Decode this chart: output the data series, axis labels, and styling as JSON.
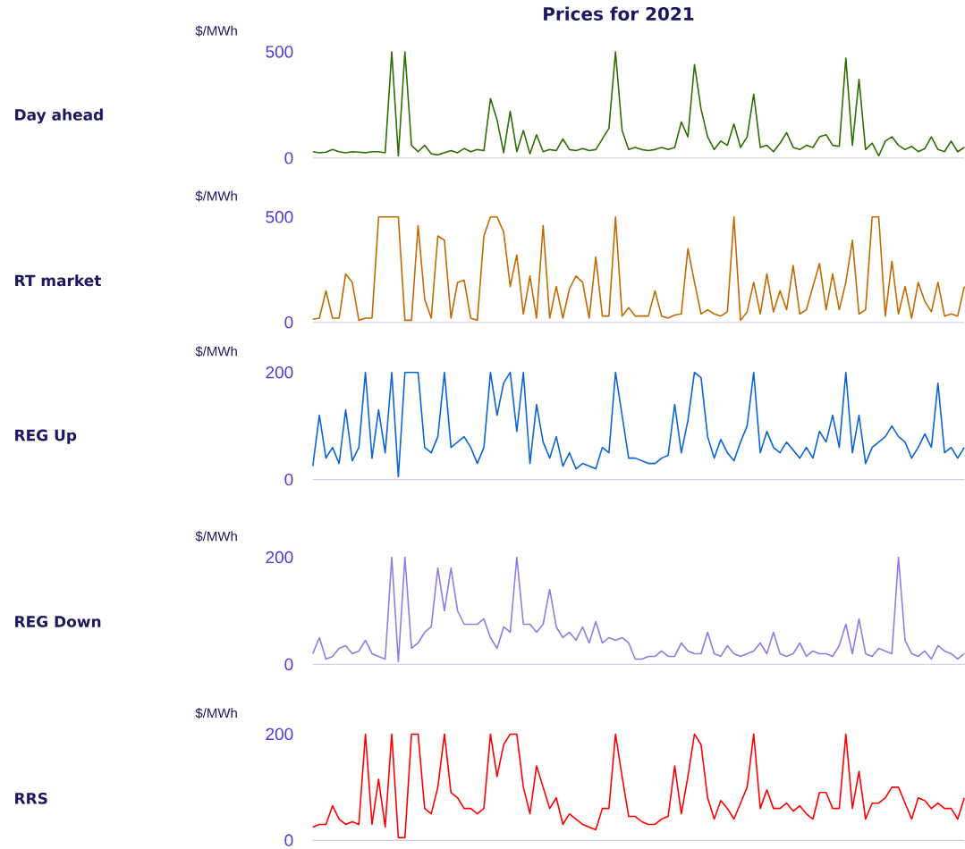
{
  "chart_data": [
    {
      "type": "line",
      "title": "Prices for 2021",
      "ylabel": "Day ahead",
      "annotations": [
        "$/MWh"
      ],
      "categories": [
        null,
        null,
        null,
        null,
        null,
        null,
        null,
        null,
        null,
        null,
        null,
        null,
        null,
        null,
        null,
        null,
        null,
        null,
        null,
        null,
        null,
        null,
        null,
        null,
        null,
        null,
        null,
        null,
        null,
        null,
        null,
        null,
        null,
        null,
        null,
        null,
        null,
        null,
        null,
        null,
        null,
        null,
        null,
        null,
        null,
        null,
        null,
        null,
        null,
        null,
        null,
        null,
        null,
        null,
        null,
        null,
        null,
        null,
        null,
        null,
        null,
        null,
        null,
        null,
        null,
        null,
        null,
        null,
        null,
        null,
        null,
        null,
        null,
        null,
        null,
        null,
        null,
        null,
        null,
        null,
        null,
        null,
        null,
        null,
        null,
        null,
        null,
        null,
        null,
        null,
        null,
        null,
        null,
        null,
        null,
        null,
        null,
        null,
        null,
        null
      ],
      "ylim": [
        0,
        500
      ],
      "yticks": [
        0,
        500
      ],
      "series": [
        {
          "color": "#2d6e00",
          "values": [
            30,
            25,
            28,
            40,
            30,
            25,
            30,
            28,
            25,
            30,
            30,
            25,
            500,
            10,
            500,
            60,
            30,
            60,
            20,
            15,
            25,
            35,
            25,
            45,
            30,
            40,
            35,
            280,
            180,
            25,
            220,
            30,
            130,
            20,
            110,
            30,
            40,
            35,
            90,
            40,
            35,
            45,
            35,
            40,
            90,
            140,
            500,
            130,
            40,
            50,
            40,
            35,
            40,
            50,
            40,
            50,
            170,
            100,
            440,
            230,
            100,
            40,
            80,
            60,
            160,
            50,
            100,
            300,
            50,
            60,
            30,
            70,
            120,
            50,
            40,
            60,
            50,
            100,
            110,
            60,
            55,
            470,
            60,
            370,
            40,
            70,
            10,
            80,
            100,
            60,
            40,
            55,
            30,
            45,
            100,
            40,
            30,
            80,
            30,
            50
          ]
        }
      ]
    },
    {
      "type": "line",
      "ylabel": "RT market",
      "annotations": [
        "$/MWh"
      ],
      "categories": [
        null,
        null,
        null,
        null,
        null,
        null,
        null,
        null,
        null,
        null,
        null,
        null,
        null,
        null,
        null,
        null,
        null,
        null,
        null,
        null,
        null,
        null,
        null,
        null,
        null,
        null,
        null,
        null,
        null,
        null,
        null,
        null,
        null,
        null,
        null,
        null,
        null,
        null,
        null,
        null,
        null,
        null,
        null,
        null,
        null,
        null,
        null,
        null,
        null,
        null,
        null,
        null,
        null,
        null,
        null,
        null,
        null,
        null,
        null,
        null,
        null,
        null,
        null,
        null,
        null,
        null,
        null,
        null,
        null,
        null,
        null,
        null,
        null,
        null,
        null,
        null,
        null,
        null,
        null,
        null,
        null,
        null,
        null,
        null,
        null,
        null,
        null,
        null,
        null,
        null,
        null,
        null,
        null,
        null,
        null,
        null,
        null,
        null,
        null,
        null
      ],
      "ylim": [
        0,
        500
      ],
      "yticks": [
        0,
        500
      ],
      "series": [
        {
          "color": "#c26a00",
          "values": [
            15,
            20,
            150,
            20,
            20,
            230,
            190,
            10,
            20,
            20,
            500,
            500,
            500,
            500,
            10,
            10,
            460,
            110,
            20,
            410,
            390,
            20,
            190,
            200,
            20,
            10,
            410,
            500,
            500,
            430,
            170,
            320,
            40,
            220,
            20,
            460,
            20,
            170,
            20,
            160,
            220,
            190,
            20,
            310,
            30,
            30,
            500,
            30,
            70,
            30,
            30,
            30,
            150,
            30,
            20,
            35,
            40,
            350,
            190,
            40,
            60,
            40,
            30,
            50,
            500,
            10,
            50,
            190,
            40,
            230,
            50,
            150,
            60,
            270,
            40,
            60,
            170,
            280,
            60,
            230,
            60,
            190,
            390,
            40,
            60,
            500,
            500,
            30,
            290,
            40,
            170,
            20,
            190,
            100,
            50,
            190,
            30,
            40,
            30,
            170
          ]
        }
      ]
    },
    {
      "type": "line",
      "ylabel": "REG Up",
      "annotations": [
        "$/MWh"
      ],
      "categories": [
        null,
        null,
        null,
        null,
        null,
        null,
        null,
        null,
        null,
        null,
        null,
        null,
        null,
        null,
        null,
        null,
        null,
        null,
        null,
        null,
        null,
        null,
        null,
        null,
        null,
        null,
        null,
        null,
        null,
        null,
        null,
        null,
        null,
        null,
        null,
        null,
        null,
        null,
        null,
        null,
        null,
        null,
        null,
        null,
        null,
        null,
        null,
        null,
        null,
        null,
        null,
        null,
        null,
        null,
        null,
        null,
        null,
        null,
        null,
        null,
        null,
        null,
        null,
        null,
        null,
        null,
        null,
        null,
        null,
        null,
        null,
        null,
        null,
        null,
        null,
        null,
        null,
        null,
        null,
        null,
        null,
        null,
        null,
        null,
        null,
        null,
        null,
        null,
        null,
        null,
        null,
        null,
        null,
        null,
        null,
        null,
        null,
        null,
        null,
        null
      ],
      "ylim": [
        0,
        200
      ],
      "yticks": [
        0,
        200
      ],
      "series": [
        {
          "color": "#0a64d8",
          "values": [
            25,
            120,
            40,
            60,
            30,
            130,
            35,
            60,
            200,
            40,
            130,
            50,
            200,
            5,
            200,
            200,
            200,
            60,
            50,
            80,
            200,
            60,
            70,
            80,
            60,
            30,
            60,
            200,
            120,
            180,
            200,
            90,
            200,
            30,
            140,
            70,
            40,
            80,
            25,
            50,
            20,
            30,
            25,
            20,
            60,
            50,
            200,
            120,
            40,
            40,
            35,
            30,
            30,
            40,
            45,
            140,
            50,
            110,
            200,
            190,
            80,
            40,
            75,
            50,
            35,
            70,
            100,
            200,
            50,
            90,
            60,
            50,
            70,
            55,
            40,
            60,
            40,
            90,
            70,
            120,
            60,
            200,
            50,
            120,
            30,
            60,
            70,
            80,
            100,
            80,
            70,
            40,
            60,
            85,
            60,
            180,
            50,
            60,
            40,
            60
          ]
        }
      ]
    },
    {
      "type": "line",
      "ylabel": "REG Down",
      "annotations": [
        "$/MWh"
      ],
      "categories": [
        null,
        null,
        null,
        null,
        null,
        null,
        null,
        null,
        null,
        null,
        null,
        null,
        null,
        null,
        null,
        null,
        null,
        null,
        null,
        null,
        null,
        null,
        null,
        null,
        null,
        null,
        null,
        null,
        null,
        null,
        null,
        null,
        null,
        null,
        null,
        null,
        null,
        null,
        null,
        null,
        null,
        null,
        null,
        null,
        null,
        null,
        null,
        null,
        null,
        null,
        null,
        null,
        null,
        null,
        null,
        null,
        null,
        null,
        null,
        null,
        null,
        null,
        null,
        null,
        null,
        null,
        null,
        null,
        null,
        null,
        null,
        null,
        null,
        null,
        null,
        null,
        null,
        null,
        null,
        null,
        null,
        null,
        null,
        null,
        null,
        null,
        null,
        null,
        null,
        null,
        null,
        null,
        null,
        null,
        null,
        null,
        null,
        null,
        null,
        null
      ],
      "ylim": [
        0,
        200
      ],
      "yticks": [
        0,
        200
      ],
      "series": [
        {
          "color": "#8a7fe6",
          "values": [
            20,
            50,
            10,
            15,
            30,
            35,
            20,
            25,
            45,
            20,
            15,
            10,
            200,
            5,
            200,
            30,
            40,
            60,
            70,
            180,
            100,
            180,
            100,
            75,
            75,
            75,
            85,
            50,
            30,
            70,
            60,
            200,
            75,
            75,
            60,
            75,
            140,
            70,
            50,
            60,
            45,
            70,
            40,
            80,
            40,
            50,
            45,
            50,
            40,
            10,
            10,
            15,
            15,
            25,
            15,
            15,
            40,
            25,
            20,
            20,
            60,
            20,
            15,
            35,
            20,
            15,
            20,
            25,
            40,
            20,
            60,
            20,
            15,
            20,
            40,
            15,
            25,
            20,
            20,
            15,
            35,
            75,
            20,
            85,
            20,
            15,
            30,
            25,
            20,
            200,
            45,
            20,
            15,
            25,
            10,
            35,
            25,
            20,
            10,
            20
          ]
        }
      ]
    },
    {
      "type": "line",
      "ylabel": "RRS",
      "annotations": [
        "$/MWh"
      ],
      "categories": [
        null,
        null,
        null,
        null,
        null,
        null,
        null,
        null,
        null,
        null,
        null,
        null,
        null,
        null,
        null,
        null,
        null,
        null,
        null,
        null,
        null,
        null,
        null,
        null,
        null,
        null,
        null,
        null,
        null,
        null,
        null,
        null,
        null,
        null,
        null,
        null,
        null,
        null,
        null,
        null,
        null,
        null,
        null,
        null,
        null,
        null,
        null,
        null,
        null,
        null,
        null,
        null,
        null,
        null,
        null,
        null,
        null,
        null,
        null,
        null,
        null,
        null,
        null,
        null,
        null,
        null,
        null,
        null,
        null,
        null,
        null,
        null,
        null,
        null,
        null,
        null,
        null,
        null,
        null,
        null,
        null,
        null,
        null,
        null,
        null,
        null,
        null,
        null,
        null,
        null,
        null,
        null,
        null,
        null,
        null,
        null,
        null,
        null,
        null,
        null
      ],
      "ylim": [
        0,
        200
      ],
      "yticks": [
        0,
        200
      ],
      "series": [
        {
          "color": "#ff0000",
          "values": [
            25,
            30,
            30,
            65,
            40,
            30,
            35,
            30,
            200,
            30,
            115,
            25,
            200,
            5,
            5,
            200,
            200,
            60,
            50,
            100,
            200,
            90,
            80,
            60,
            60,
            50,
            60,
            200,
            120,
            180,
            200,
            200,
            100,
            50,
            140,
            100,
            60,
            80,
            30,
            50,
            40,
            30,
            25,
            20,
            60,
            60,
            200,
            120,
            45,
            45,
            35,
            30,
            30,
            40,
            45,
            140,
            50,
            120,
            200,
            180,
            80,
            40,
            75,
            60,
            40,
            70,
            100,
            200,
            60,
            95,
            60,
            60,
            70,
            55,
            65,
            50,
            40,
            90,
            90,
            60,
            60,
            200,
            60,
            130,
            40,
            70,
            70,
            80,
            100,
            100,
            70,
            40,
            80,
            75,
            60,
            70,
            60,
            60,
            40,
            80
          ]
        }
      ]
    }
  ]
}
